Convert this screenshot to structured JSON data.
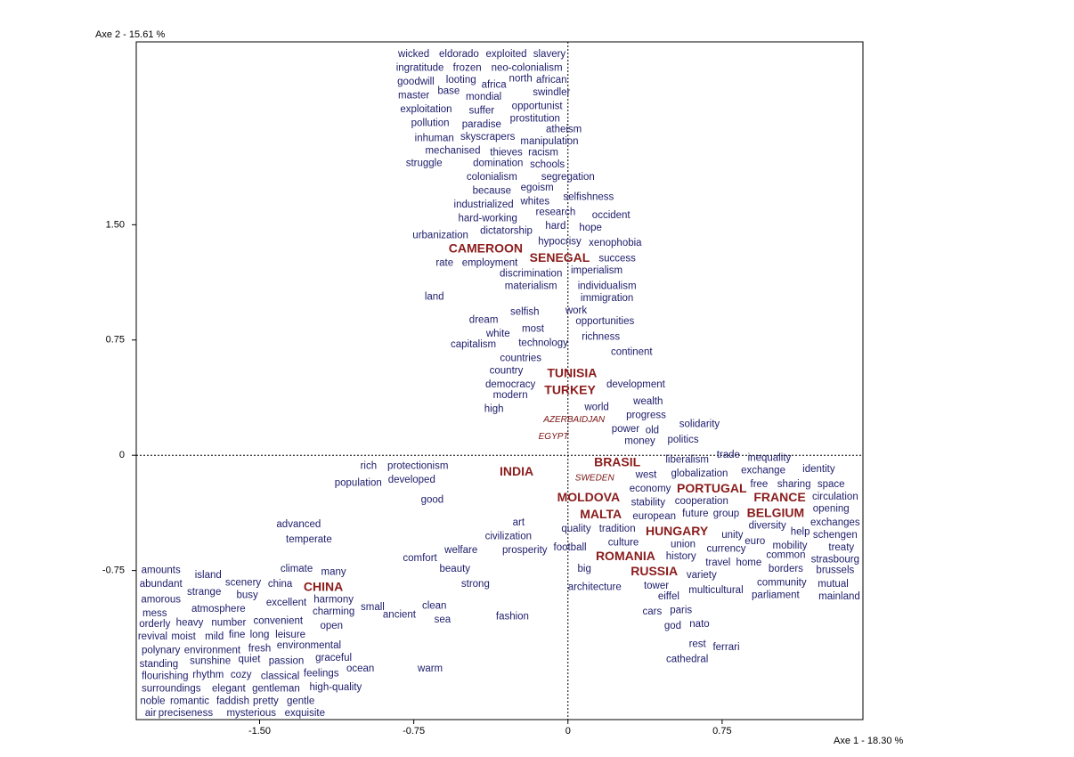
{
  "chart_data": {
    "type": "scatter",
    "x_label": "Axe 1  -  18.30 %",
    "y_label": "Axe 2  -  15.61 %",
    "xlim": [
      -2.1,
      1.435
    ],
    "ylim": [
      -1.72,
      2.69
    ],
    "xticks": [
      {
        "value": -1.5,
        "label": "-1.50"
      },
      -0.75,
      0,
      0.75
    ],
    "yticks": [
      -0.75,
      0,
      0.75,
      {
        "value": 1.5,
        "label": "1.50"
      }
    ],
    "zero_lines": true,
    "series": [
      {
        "color": "#1c1c6b",
        "style": "normal",
        "labels": [
          "wicked",
          "eldorado",
          "exploited",
          "slavery",
          "ingratitude",
          "frozen",
          "neo-colonialism",
          "goodwill",
          "looting",
          "africa",
          "north",
          "african",
          "master",
          "base",
          "mondial",
          "swindler",
          "opportunist",
          "exploitation",
          "suffer",
          "prostitution",
          "pollution",
          "paradise",
          "atheism",
          "inhuman",
          "skyscrapers",
          "manipulation",
          "mechanised",
          "thieves",
          "racism",
          "struggle",
          "domination",
          "schools",
          "colonialism",
          "segregation",
          "because",
          "egoism",
          "industrialized",
          "whites",
          "selfishness",
          "hard-working",
          "research",
          "occident",
          "dictatorship",
          "hard",
          "hope",
          "urbanization",
          "hypocrisy",
          "xenophobia",
          "success",
          "rate",
          "employment",
          "discrimination",
          "imperialism",
          "materialism",
          "individualism",
          "land",
          "immigration",
          "selfish",
          "work",
          "dream",
          "most",
          "opportunities",
          "white",
          "capitalism",
          "technology",
          "richness",
          "countries",
          "continent",
          "country",
          "democracy",
          "development",
          "modern",
          "wealth",
          "high",
          "world",
          "progress",
          "solidarity",
          "power",
          "old",
          "politics",
          "money",
          "rich",
          "protectionism",
          "population",
          "developed",
          "trade",
          "inequality",
          "liberalism",
          "identity",
          "west",
          "globalization",
          "exchange",
          "economy",
          "free",
          "sharing",
          "space",
          "good",
          "stability",
          "cooperation",
          "circulation",
          "european",
          "future",
          "group",
          "opening",
          "advanced",
          "art",
          "quality",
          "tradition",
          "exchanges",
          "diversity",
          "civilization",
          "temperate",
          "unity",
          "help",
          "schengen",
          "euro",
          "mobility",
          "union",
          "currency",
          "treaty",
          "welfare",
          "prosperity",
          "football",
          "culture",
          "common",
          "history",
          "strasbourg",
          "comfort",
          "climate",
          "many",
          "beauty",
          "travel",
          "home",
          "borders",
          "brussels",
          "amounts",
          "island",
          "big",
          "variety",
          "scenery",
          "china",
          "abundant",
          "strong",
          "community",
          "mutual",
          "strange",
          "busy",
          "architecture",
          "tower",
          "multicultural",
          "parliament",
          "mainland",
          "amorous",
          "excellent",
          "harmony",
          "eiffel",
          "atmosphere",
          "clean",
          "charming",
          "small",
          "mess",
          "paris",
          "cars",
          "ancient",
          "sea",
          "fashion",
          "number",
          "convenient",
          "orderly",
          "heavy",
          "open",
          "god",
          "nato",
          "revival",
          "moist",
          "mild",
          "fine",
          "long",
          "leisure",
          "polynary",
          "environment",
          "fresh",
          "environmental",
          "rest",
          "ferrari",
          "standing",
          "sunshine",
          "quiet",
          "passion",
          "graceful",
          "cathedral",
          "warm",
          "flourishing",
          "rhythm",
          "cozy",
          "classical",
          "feelings",
          "ocean",
          "surroundings",
          "elegant",
          "gentleman",
          "high-quality",
          "noble",
          "romantic",
          "faddish",
          "pretty",
          "gentle",
          "air",
          "preciseness",
          "mysterious",
          "exquisite"
        ],
        "x": [
          -0.75,
          -0.53,
          -0.3,
          -0.09,
          -0.72,
          -0.49,
          -0.2,
          -0.74,
          -0.52,
          -0.36,
          -0.23,
          -0.08,
          -0.75,
          -0.58,
          -0.41,
          -0.08,
          -0.15,
          -0.69,
          -0.42,
          -0.16,
          -0.67,
          -0.42,
          -0.02,
          -0.65,
          -0.39,
          -0.09,
          -0.56,
          -0.3,
          -0.12,
          -0.7,
          -0.34,
          -0.1,
          -0.37,
          0.0,
          -0.37,
          -0.15,
          -0.41,
          -0.16,
          0.1,
          -0.39,
          -0.06,
          0.21,
          -0.3,
          -0.06,
          0.11,
          -0.62,
          -0.04,
          0.23,
          0.24,
          -0.6,
          -0.38,
          -0.18,
          0.14,
          -0.18,
          0.19,
          -0.65,
          0.19,
          -0.21,
          0.04,
          -0.41,
          -0.17,
          0.18,
          -0.34,
          -0.46,
          -0.12,
          0.16,
          -0.23,
          0.31,
          -0.3,
          -0.28,
          0.33,
          -0.28,
          0.39,
          -0.36,
          0.14,
          0.38,
          0.64,
          0.28,
          0.41,
          0.56,
          0.35,
          -0.97,
          -0.73,
          -1.02,
          -0.76,
          0.78,
          0.98,
          0.58,
          1.22,
          0.38,
          0.64,
          0.95,
          0.4,
          0.93,
          1.1,
          1.28,
          -0.66,
          0.39,
          0.65,
          1.3,
          0.42,
          0.62,
          0.77,
          1.28,
          -1.31,
          -0.24,
          0.04,
          0.24,
          1.3,
          0.97,
          -0.29,
          -1.26,
          0.8,
          1.13,
          1.3,
          0.91,
          1.08,
          0.56,
          0.77,
          1.33,
          -0.52,
          -0.21,
          0.01,
          0.27,
          1.06,
          0.55,
          1.3,
          -0.72,
          -1.32,
          -1.14,
          -0.55,
          0.73,
          0.88,
          1.06,
          1.3,
          -1.98,
          -1.75,
          0.08,
          0.65,
          -1.58,
          -1.4,
          -1.98,
          -0.45,
          1.04,
          1.29,
          -1.77,
          -1.56,
          0.13,
          0.43,
          0.72,
          1.01,
          1.32,
          -1.98,
          -1.37,
          -1.14,
          0.49,
          -1.7,
          -0.65,
          -1.14,
          -0.95,
          -2.01,
          0.55,
          0.41,
          -0.82,
          -0.61,
          -0.27,
          -1.65,
          -1.41,
          -2.01,
          -1.84,
          -1.15,
          0.51,
          0.64,
          -2.02,
          -1.87,
          -1.72,
          -1.61,
          -1.5,
          -1.35,
          -1.98,
          -1.73,
          -1.5,
          -1.26,
          0.63,
          0.77,
          -1.99,
          -1.74,
          -1.55,
          -1.37,
          -1.14,
          0.58,
          -0.67,
          -1.96,
          -1.75,
          -1.59,
          -1.4,
          -1.2,
          -1.01,
          -1.93,
          -1.65,
          -1.42,
          -1.13,
          -2.02,
          -1.84,
          -1.63,
          -1.47,
          -1.3,
          -2.03,
          -1.86,
          -1.54,
          -1.28
        ],
        "values": [
          2.61,
          2.61,
          2.61,
          2.61,
          2.52,
          2.52,
          2.52,
          2.43,
          2.44,
          2.41,
          2.45,
          2.44,
          2.34,
          2.37,
          2.33,
          2.36,
          2.27,
          2.25,
          2.24,
          2.19,
          2.16,
          2.15,
          2.12,
          2.06,
          2.07,
          2.04,
          1.98,
          1.97,
          1.97,
          1.9,
          1.9,
          1.89,
          1.81,
          1.81,
          1.72,
          1.74,
          1.63,
          1.65,
          1.68,
          1.54,
          1.58,
          1.56,
          1.46,
          1.49,
          1.48,
          1.43,
          1.39,
          1.38,
          1.28,
          1.25,
          1.25,
          1.18,
          1.2,
          1.1,
          1.1,
          1.03,
          1.02,
          0.93,
          0.94,
          0.88,
          0.82,
          0.87,
          0.79,
          0.72,
          0.73,
          0.77,
          0.63,
          0.67,
          0.55,
          0.46,
          0.46,
          0.39,
          0.35,
          0.3,
          0.31,
          0.26,
          0.2,
          0.17,
          0.16,
          0.1,
          0.09,
          -0.07,
          -0.07,
          -0.18,
          -0.16,
          0.0,
          -0.02,
          -0.03,
          -0.09,
          -0.13,
          -0.12,
          -0.1,
          -0.22,
          -0.19,
          -0.19,
          -0.19,
          -0.29,
          -0.31,
          -0.3,
          -0.27,
          -0.4,
          -0.38,
          -0.38,
          -0.35,
          -0.45,
          -0.44,
          -0.48,
          -0.48,
          -0.44,
          -0.46,
          -0.53,
          -0.55,
          -0.52,
          -0.5,
          -0.52,
          -0.56,
          -0.59,
          -0.58,
          -0.61,
          -0.6,
          -0.62,
          -0.62,
          -0.6,
          -0.57,
          -0.65,
          -0.66,
          -0.68,
          -0.67,
          -0.74,
          -0.76,
          -0.74,
          -0.7,
          -0.7,
          -0.74,
          -0.75,
          -0.75,
          -0.78,
          -0.74,
          -0.78,
          -0.83,
          -0.84,
          -0.84,
          -0.84,
          -0.83,
          -0.84,
          -0.89,
          -0.91,
          -0.86,
          -0.85,
          -0.88,
          -0.91,
          -0.92,
          -0.94,
          -0.96,
          -0.94,
          -0.92,
          -1.0,
          -0.98,
          -1.02,
          -0.99,
          -1.03,
          -1.01,
          -1.02,
          -1.04,
          -1.07,
          -1.05,
          -1.09,
          -1.08,
          -1.1,
          -1.09,
          -1.11,
          -1.11,
          -1.1,
          -1.18,
          -1.18,
          -1.18,
          -1.17,
          -1.17,
          -1.17,
          -1.27,
          -1.27,
          -1.26,
          -1.24,
          -1.23,
          -1.25,
          -1.36,
          -1.34,
          -1.33,
          -1.34,
          -1.32,
          -1.33,
          -1.39,
          -1.44,
          -1.43,
          -1.43,
          -1.44,
          -1.42,
          -1.39,
          -1.52,
          -1.52,
          -1.52,
          -1.51,
          -1.6,
          -1.6,
          -1.6,
          -1.6,
          -1.6,
          -1.68,
          -1.68,
          -1.68,
          -1.68
        ]
      },
      {
        "color": "#8b1c1c",
        "style": "bold",
        "labels": [
          "CAMEROON",
          "SENEGAL",
          "TUNISIA",
          "TURKEY",
          "BRASIL",
          "INDIA",
          "PORTUGAL",
          "MOLDOVA",
          "FRANCE",
          "MALTA",
          "BELGIUM",
          "HUNGARY",
          "ROMANIA",
          "RUSSIA",
          "CHINA"
        ],
        "x": [
          -0.4,
          -0.04,
          0.02,
          0.01,
          0.24,
          -0.25,
          0.7,
          0.1,
          1.03,
          0.16,
          1.01,
          0.53,
          0.28,
          0.42,
          -1.19
        ],
        "values": [
          1.34,
          1.28,
          0.53,
          0.42,
          -0.05,
          -0.11,
          -0.22,
          -0.28,
          -0.28,
          -0.39,
          -0.38,
          -0.5,
          -0.66,
          -0.76,
          -0.86
        ]
      },
      {
        "color": "#7a1414",
        "style": "italic",
        "labels": [
          "AZERBAIDJAN",
          "EGYPT",
          "SWEDEN"
        ],
        "x": [
          0.03,
          -0.07,
          0.13
        ],
        "values": [
          0.23,
          0.12,
          -0.15
        ]
      }
    ]
  }
}
